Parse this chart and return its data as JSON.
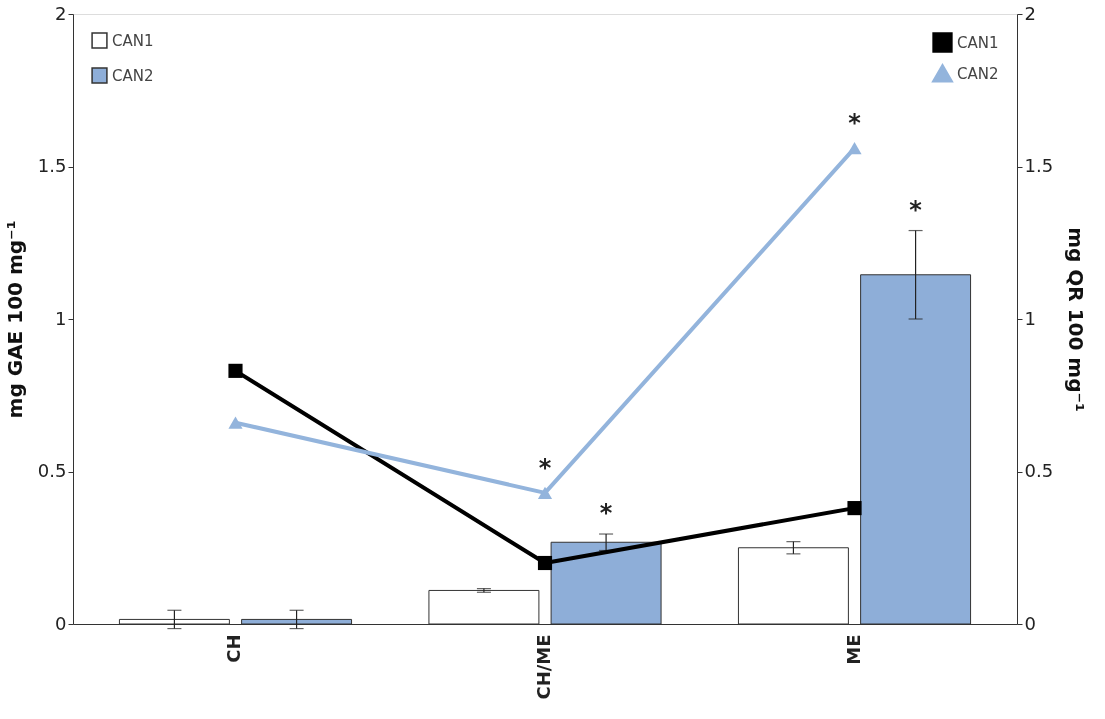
{
  "chart_data": {
    "type": "bar",
    "categories": [
      "CH",
      "CH/ME",
      "ME"
    ],
    "ylabel": "mg GAE 100 mg⁻¹",
    "y2label": "mg QR 100 mg⁻¹",
    "ylim": [
      0,
      2
    ],
    "yticks": [
      0,
      0.5,
      1,
      1.5,
      2
    ],
    "y2lim": [
      0,
      2
    ],
    "y2ticks": [
      0,
      0.5,
      1,
      1.5,
      2
    ],
    "grid": false,
    "legend": "top",
    "series": [
      {
        "name": "CAN1",
        "color": "#ffffff",
        "values": [
          0.015,
          0.11,
          0.25
        ],
        "errors": [
          0.03,
          0.006,
          0.02
        ]
      },
      {
        "name": "CAN2",
        "color": "#8eaed8",
        "values": [
          0.015,
          0.268,
          1.145
        ],
        "errors": [
          0.03,
          0.027,
          0.145
        ],
        "value_labels": [
          null,
          "*",
          "*"
        ]
      },
      {
        "name": "CAN1",
        "type": "line",
        "axis": "y2",
        "color": "#000000",
        "marker": "square",
        "values": [
          0.83,
          0.2,
          0.38
        ]
      },
      {
        "name": "CAN2",
        "type": "line",
        "axis": "y2",
        "color": "#93b4dc",
        "marker": "triangle",
        "values": [
          0.66,
          0.43,
          1.56
        ],
        "value_labels": [
          null,
          "*",
          "*"
        ]
      }
    ]
  }
}
